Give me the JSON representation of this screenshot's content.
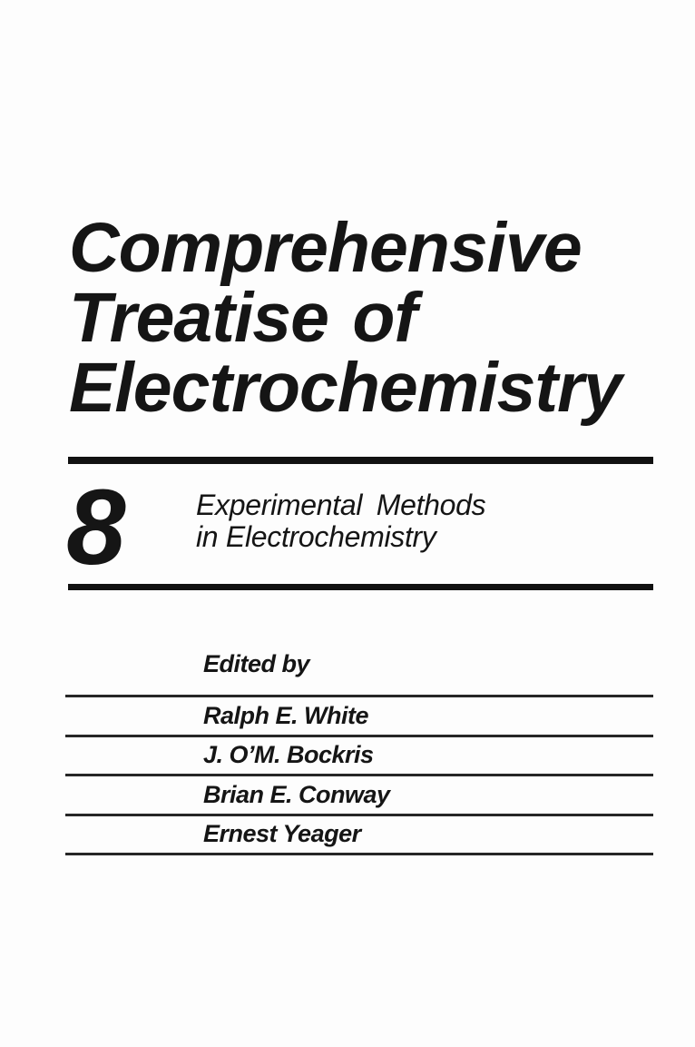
{
  "book": {
    "title_lines": [
      "Comprehensive",
      "Treatise of",
      "Electrochemistry"
    ],
    "volume_number": "8",
    "volume_subtitle_lines": [
      "Experimental Methods",
      "in Electrochemistry"
    ],
    "edited_by_label": "Edited by",
    "editors": [
      "Ralph E. White",
      "J. O’M. Bockris",
      "Brian E. Conway",
      "Ernest Yeager"
    ]
  },
  "colors": {
    "paper": "#fdfdfd",
    "ink": "#151515",
    "rule_thick": "#111111",
    "rule_thin": "#262626"
  }
}
